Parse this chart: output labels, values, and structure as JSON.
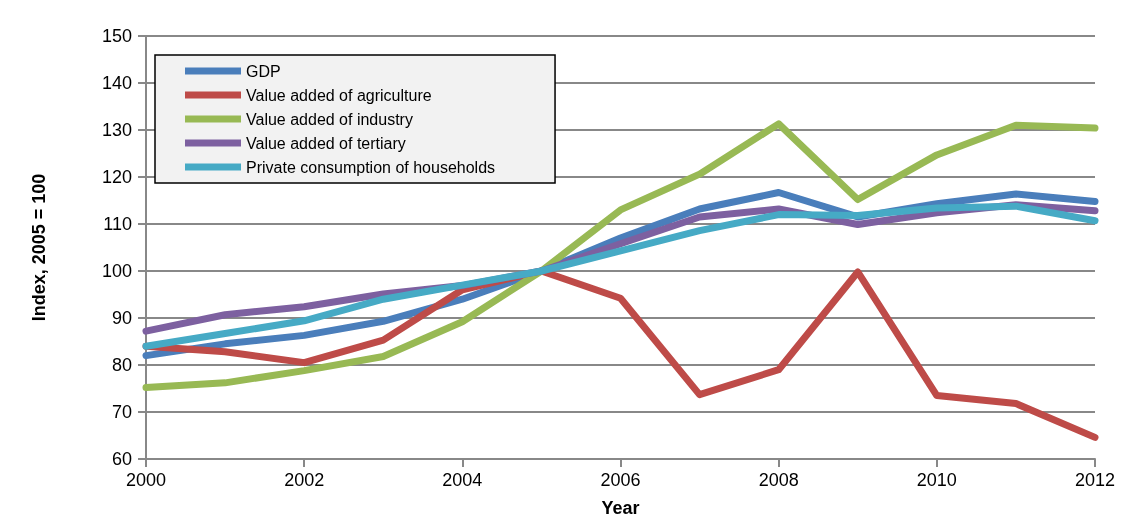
{
  "chart_data": {
    "type": "line",
    "xlabel": "Year",
    "ylabel": "Index, 2005 = 100",
    "x": [
      2000,
      2001,
      2002,
      2003,
      2004,
      2005,
      2006,
      2007,
      2008,
      2009,
      2010,
      2011,
      2012
    ],
    "series": [
      {
        "name": "GDP",
        "color": "#4a7ebb",
        "values": [
          82,
          84.5,
          86.3,
          89.3,
          94,
          100,
          107,
          113.2,
          116.7,
          111.5,
          114.3,
          116.4,
          114.8
        ]
      },
      {
        "name": "Value added of agriculture",
        "color": "#be4b48",
        "values": [
          84,
          82.8,
          80.5,
          85.3,
          96,
          100,
          94.2,
          73.7,
          79,
          99.8,
          73.5,
          71.8,
          64.6
        ]
      },
      {
        "name": "Value added of industry",
        "color": "#98b954",
        "values": [
          75.2,
          76.2,
          78.8,
          81.8,
          89.2,
          100,
          113,
          120.6,
          131.3,
          115.2,
          124.7,
          131,
          130.4
        ]
      },
      {
        "name": "Value added of tertiary",
        "color": "#7d60a0",
        "values": [
          87.2,
          90.7,
          92.4,
          95.1,
          96.9,
          100,
          105.8,
          111.5,
          113.2,
          109.9,
          112.4,
          114.1,
          112.8
        ]
      },
      {
        "name": "Private consumption of households",
        "color": "#46aac5",
        "values": [
          84,
          86.7,
          89.4,
          94,
          97,
          100,
          104.3,
          108.6,
          112,
          111.8,
          113.4,
          113.8,
          110.7
        ]
      }
    ],
    "xlim": [
      2000,
      2012
    ],
    "xticks": [
      2000,
      2002,
      2004,
      2006,
      2008,
      2010,
      2012
    ],
    "ylim": [
      60,
      150
    ],
    "yticks": [
      60,
      70,
      80,
      90,
      100,
      110,
      120,
      130,
      140,
      150
    ],
    "grid": "y",
    "legend": "top left",
    "marker": "none",
    "line_style": "solid"
  }
}
